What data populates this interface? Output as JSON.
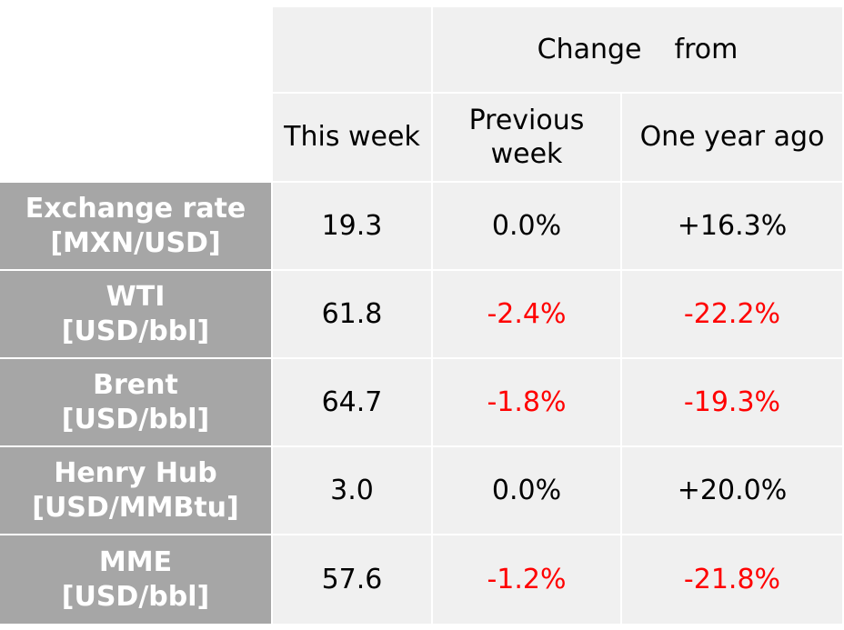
{
  "header": {
    "group_label_left": "Change",
    "group_label_right": "from",
    "col_this_week": "This week",
    "col_prev_line1": "Previous",
    "col_prev_line2": "week",
    "col_year_ago": "One year ago"
  },
  "colors": {
    "label_bg": "#a6a6a6",
    "cell_bg": "#f0f0f0",
    "negative": "#ff0000",
    "positive": "#000000"
  },
  "chart_data": {
    "type": "table",
    "columns": [
      "This week",
      "Previous week",
      "One year ago"
    ],
    "rows": [
      {
        "name": "Exchange rate",
        "unit": "[MXN/USD]",
        "this_week": "19.3",
        "prev_week": "0.0%",
        "year_ago": "+16.3%",
        "prev_neg": false,
        "year_neg": false
      },
      {
        "name": "WTI",
        "unit": "[USD/bbl]",
        "this_week": "61.8",
        "prev_week": "-2.4%",
        "year_ago": "-22.2%",
        "prev_neg": true,
        "year_neg": true
      },
      {
        "name": "Brent",
        "unit": "[USD/bbl]",
        "this_week": "64.7",
        "prev_week": "-1.8%",
        "year_ago": "-19.3%",
        "prev_neg": true,
        "year_neg": true
      },
      {
        "name": "Henry Hub",
        "unit": "[USD/MMBtu]",
        "this_week": "3.0",
        "prev_week": "0.0%",
        "year_ago": "+20.0%",
        "prev_neg": false,
        "year_neg": false
      },
      {
        "name": "MME",
        "unit": "[USD/bbl]",
        "this_week": "57.6",
        "prev_week": "-1.2%",
        "year_ago": "-21.8%",
        "prev_neg": true,
        "year_neg": true
      }
    ]
  }
}
